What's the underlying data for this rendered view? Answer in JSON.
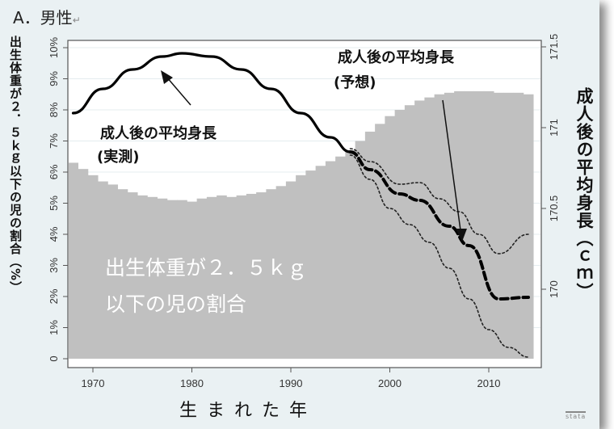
{
  "title": "A．男性",
  "axes": {
    "left_label": "出生体重が２．５ｋｇ以下の児の割合（%）",
    "right_label": "成人後の平均身長（ｃｍ）",
    "x_label": "生まれた年",
    "left_ticks": [
      "0",
      "1%",
      "2%",
      "3%",
      "4%",
      "5%",
      "6%",
      "7%",
      "8%",
      "9%",
      "10%"
    ],
    "right_ticks": [
      "170",
      "170.5",
      "171",
      "171.5"
    ],
    "x_ticks": [
      "1970",
      "1980",
      "1990",
      "2000",
      "2010"
    ]
  },
  "annotations": {
    "measured_line1": "成人後の平均身長",
    "measured_line2": "(実測)",
    "predicted_line1": "成人後の平均身長",
    "predicted_line2": "(予想)",
    "bar_label_line1": "出生体重が２．５ｋｇ",
    "bar_label_line2": "以下の児の割合"
  },
  "watermark": "stata",
  "chart_data": {
    "type": "bar+line",
    "title": "A．男性",
    "xlabel": "生まれた年",
    "ylabel_left": "出生体重が２．５ｋｇ以下の児の割合（%）",
    "ylabel_right": "成人後の平均身長（ｃｍ）",
    "xlim": [
      1968,
      2014
    ],
    "ylim_left": [
      0,
      10
    ],
    "ylim_right": [
      169.55,
      171.5
    ],
    "grid": true,
    "bars": {
      "name": "出生体重が２．５ｋｇ以下の児の割合",
      "years": [
        1968,
        1969,
        1970,
        1971,
        1972,
        1973,
        1974,
        1975,
        1976,
        1977,
        1978,
        1979,
        1980,
        1981,
        1982,
        1983,
        1984,
        1985,
        1986,
        1987,
        1988,
        1989,
        1990,
        1991,
        1992,
        1993,
        1994,
        1995,
        1996,
        1997,
        1998,
        1999,
        2000,
        2001,
        2002,
        2003,
        2004,
        2005,
        2006,
        2007,
        2008,
        2009,
        2010,
        2011,
        2012,
        2013,
        2014
      ],
      "values": [
        6.3,
        6.1,
        5.9,
        5.7,
        5.6,
        5.45,
        5.35,
        5.25,
        5.2,
        5.15,
        5.1,
        5.1,
        5.05,
        5.15,
        5.2,
        5.25,
        5.2,
        5.25,
        5.3,
        5.35,
        5.45,
        5.55,
        5.7,
        5.9,
        6.05,
        6.2,
        6.35,
        6.5,
        6.7,
        7.0,
        7.3,
        7.55,
        7.8,
        8.0,
        8.15,
        8.3,
        8.4,
        8.5,
        8.55,
        8.6,
        8.6,
        8.6,
        8.6,
        8.55,
        8.55,
        8.55,
        8.5
      ]
    },
    "series": [
      {
        "name": "成人後の平均身長(実測)",
        "style": "solid",
        "x": [
          1968,
          1971,
          1974,
          1977,
          1979,
          1982,
          1985,
          1988,
          1991,
          1994,
          1996
        ],
        "values": [
          171.09,
          171.24,
          171.36,
          171.44,
          171.46,
          171.44,
          171.36,
          171.24,
          171.09,
          170.94,
          170.85
        ]
      },
      {
        "name": "成人後の平均身長(予想)",
        "style": "dashed",
        "x": [
          1996,
          1998,
          2001,
          2003,
          2006,
          2008,
          2011,
          2014
        ],
        "values": [
          170.85,
          170.74,
          170.59,
          170.55,
          170.39,
          170.27,
          169.94,
          169.95
        ]
      },
      {
        "name": "予想 上限",
        "style": "dotted",
        "x": [
          1996,
          1998,
          2001,
          2003,
          2005,
          2007,
          2009,
          2011,
          2014
        ],
        "values": [
          170.87,
          170.79,
          170.65,
          170.66,
          170.56,
          170.48,
          170.34,
          170.22,
          170.34
        ]
      },
      {
        "name": "予想 下限",
        "style": "dotted",
        "x": [
          1996,
          1998,
          2000,
          2002,
          2004,
          2006,
          2008,
          2010,
          2012,
          2014
        ],
        "values": [
          170.83,
          170.68,
          170.5,
          170.4,
          170.29,
          170.13,
          169.94,
          169.75,
          169.64,
          169.58
        ]
      }
    ]
  }
}
